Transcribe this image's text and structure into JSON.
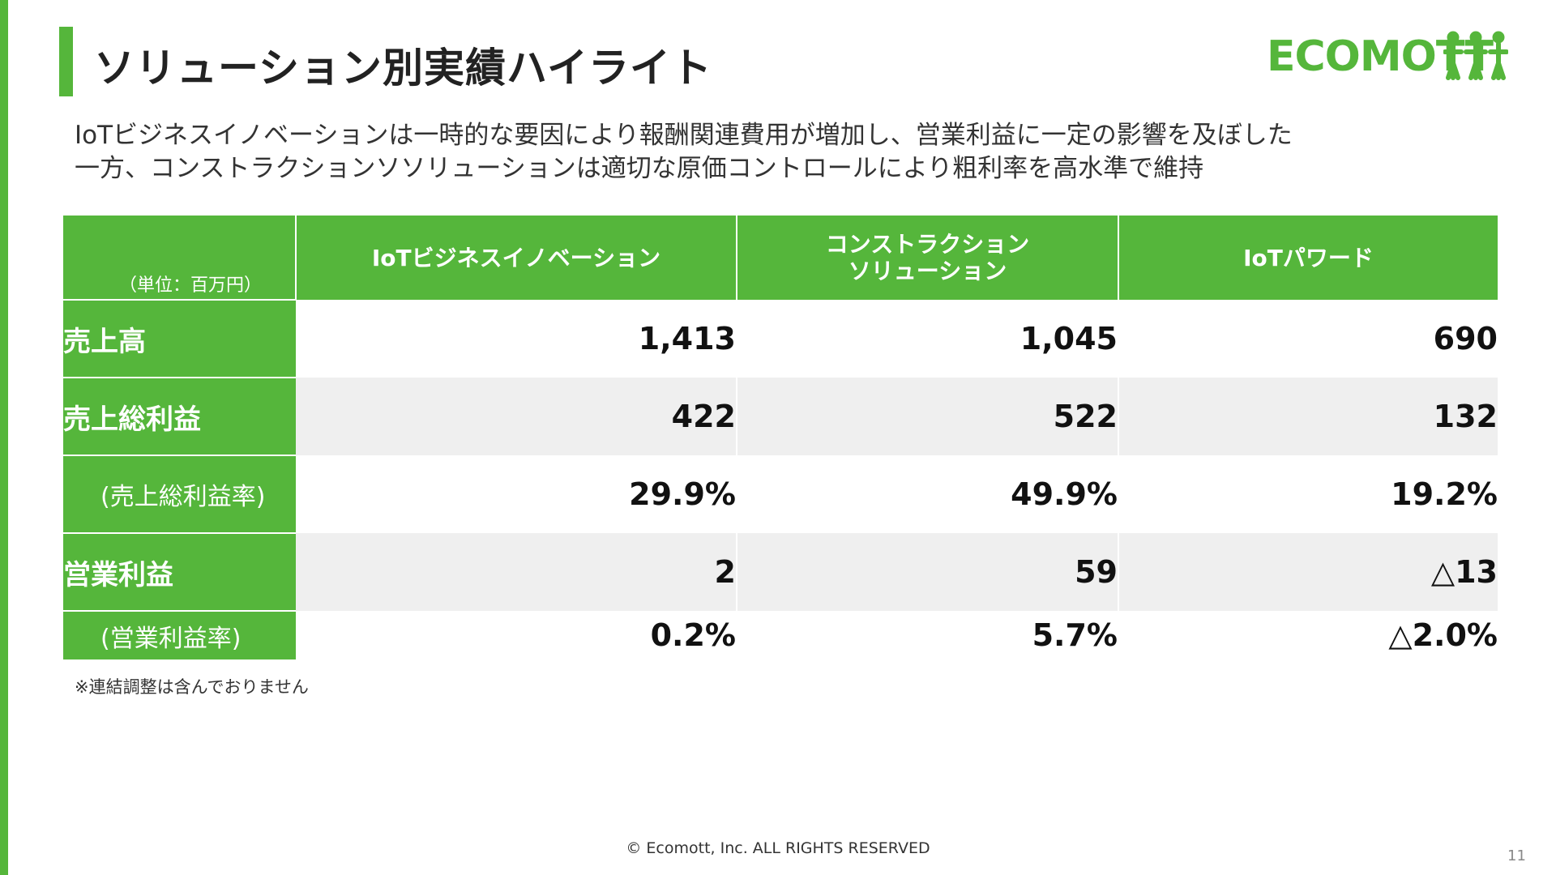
{
  "header": {
    "title": "ソリューション別実績ハイライト"
  },
  "logo": {
    "text": "ECOMOTT",
    "color": "#55b63b"
  },
  "subtitle": {
    "line1": "IoTビジネスイノベーションは一時的な要因により報酬関連費用が増加し、営業利益に一定の影響を及ぼした",
    "line2": "一方、コンストラクションソソリューションは適切な原価コントロールにより粗利率を高水準で維持"
  },
  "table": {
    "unit_label": "（単位：百万円）",
    "columns": [
      "IoTビジネスイノベーション",
      "コンストラクションソリューション",
      "IoTパワード"
    ],
    "column_lines": [
      [
        "IoTビジネスイノベーション"
      ],
      [
        "コンストラクション",
        "ソリューション"
      ],
      [
        "IoTパワード"
      ]
    ],
    "rows": [
      {
        "label": "売上高",
        "values": [
          "1,413",
          "1,045",
          "690"
        ]
      },
      {
        "label": "売上総利益",
        "values": [
          "422",
          "522",
          "132"
        ]
      },
      {
        "label": "(売上総利益率)",
        "values": [
          "29.9%",
          "49.9%",
          "19.2%"
        ]
      },
      {
        "label": "営業利益",
        "values": [
          "2",
          "59",
          "△13"
        ]
      },
      {
        "label": "(営業利益率)",
        "values": [
          "0.2%",
          "5.7%",
          "△2.0%"
        ]
      }
    ]
  },
  "footnote": "※連結調整は含んでおりません",
  "footer": {
    "copyright": "© Ecomott, Inc. ALL RIGHTS RESERVED",
    "page_number": "11"
  },
  "colors": {
    "accent": "#55b63b",
    "row_shade": "#efefef"
  }
}
